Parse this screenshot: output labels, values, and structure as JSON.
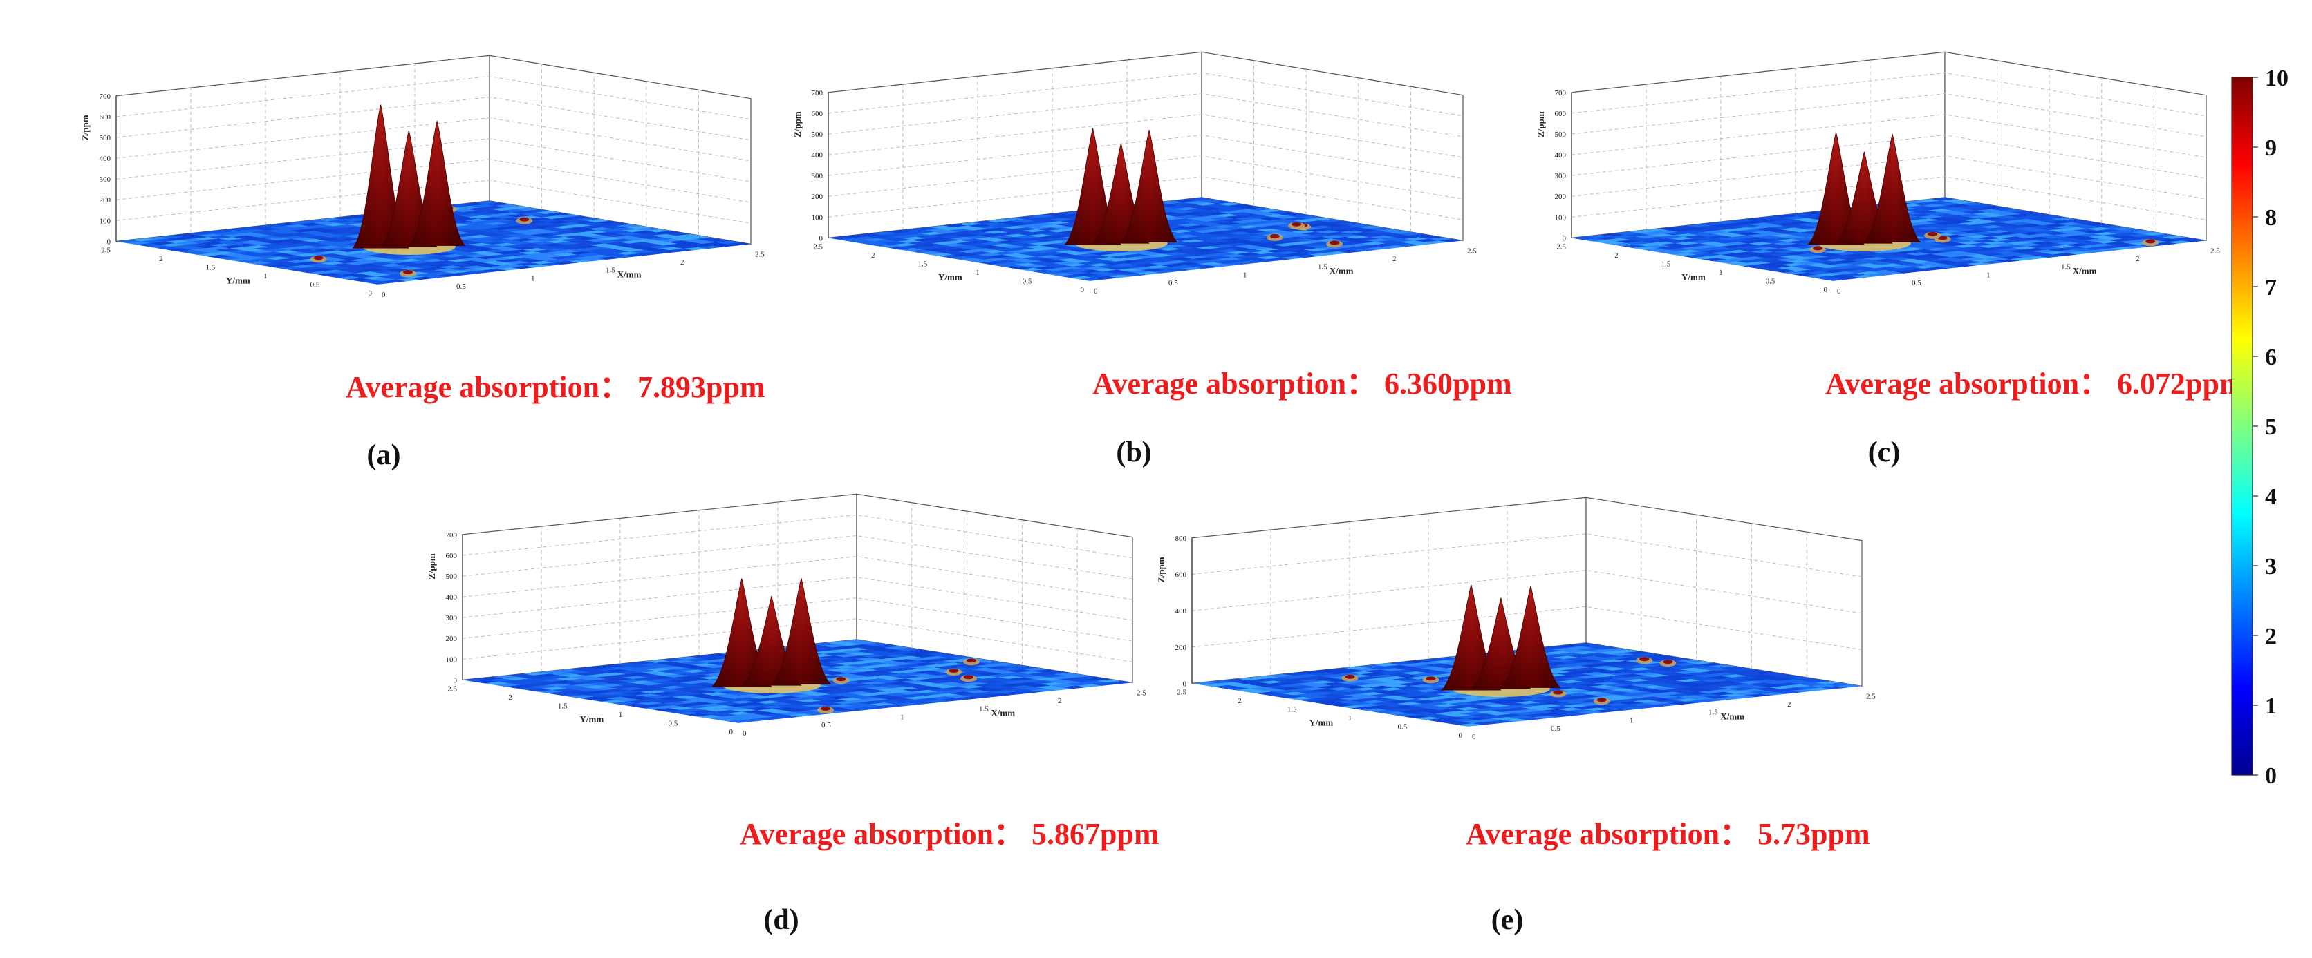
{
  "chart_data": {
    "type": "surface3d",
    "axis_labels": {
      "x": "X/mm",
      "y": "Y/mm",
      "z": "Z/ppm"
    },
    "colorbar": {
      "min": 0,
      "max": 10,
      "ticks": [
        "0",
        "1",
        "2",
        "3",
        "4",
        "5",
        "6",
        "7",
        "8",
        "9",
        "10"
      ],
      "colors": [
        "#00008f",
        "#0000ff",
        "#0080ff",
        "#00ffff",
        "#80ff80",
        "#ffff00",
        "#ff8000",
        "#ff0000",
        "#800000"
      ]
    },
    "panels": [
      {
        "id": "a",
        "label": "(a)",
        "annotation": "Average absorption： 7.893ppm",
        "average_absorption_ppm": 7.893,
        "zlim": [
          0,
          700
        ],
        "z_ticks": [
          "0",
          "100",
          "200",
          "300",
          "400",
          "500",
          "600",
          "700"
        ],
        "x_ticks": [
          "0",
          "0.5",
          "1",
          "1.5",
          "2",
          "2.5"
        ],
        "y_ticks": [
          "0",
          "0.5",
          "1",
          "1.5",
          "2",
          "2.5"
        ],
        "peak_values_ppm": [
          690,
          560,
          600
        ]
      },
      {
        "id": "b",
        "label": "(b)",
        "annotation": "Average absorption： 6.360ppm",
        "average_absorption_ppm": 6.36,
        "zlim": [
          0,
          700
        ],
        "z_ticks": [
          "0",
          "100",
          "200",
          "300",
          "400",
          "500",
          "600",
          "700"
        ],
        "x_ticks": [
          "0",
          "0.5",
          "1",
          "1.5",
          "2",
          "2.5"
        ],
        "y_ticks": [
          "0",
          "0.5",
          "1",
          "1.5",
          "2",
          "2.5"
        ],
        "peak_values_ppm": [
          560,
          480,
          540
        ]
      },
      {
        "id": "c",
        "label": "(c)",
        "annotation": "Average absorption： 6.072ppm",
        "average_absorption_ppm": 6.072,
        "zlim": [
          0,
          700
        ],
        "z_ticks": [
          "0",
          "100",
          "200",
          "300",
          "400",
          "500",
          "600",
          "700"
        ],
        "x_ticks": [
          "0",
          "0.5",
          "1",
          "1.5",
          "2",
          "2.5"
        ],
        "y_ticks": [
          "0",
          "0.5",
          "1",
          "1.5",
          "2",
          "2.5"
        ],
        "peak_values_ppm": [
          540,
          440,
          520
        ]
      },
      {
        "id": "d",
        "label": "(d)",
        "annotation": "Average absorption： 5.867ppm",
        "average_absorption_ppm": 5.867,
        "zlim": [
          0,
          700
        ],
        "z_ticks": [
          "0",
          "100",
          "200",
          "300",
          "400",
          "500",
          "600",
          "700"
        ],
        "x_ticks": [
          "0",
          "0.5",
          "1",
          "1.5",
          "2",
          "2.5"
        ],
        "y_ticks": [
          "0",
          "0.5",
          "1",
          "1.5",
          "2",
          "2.5"
        ],
        "peak_values_ppm": [
          520,
          430,
          510
        ]
      },
      {
        "id": "e",
        "label": "(e)",
        "annotation": "Average absorption： 5.73ppm",
        "average_absorption_ppm": 5.73,
        "zlim": [
          0,
          800
        ],
        "z_ticks": [
          "0",
          "200",
          "400",
          "600",
          "800"
        ],
        "x_ticks": [
          "0",
          "0.5",
          "1",
          "1.5",
          "2",
          "2.5"
        ],
        "y_ticks": [
          "0",
          "0.5",
          "1",
          "1.5",
          "2",
          "2.5"
        ],
        "peak_values_ppm": [
          580,
          500,
          560
        ]
      }
    ]
  }
}
